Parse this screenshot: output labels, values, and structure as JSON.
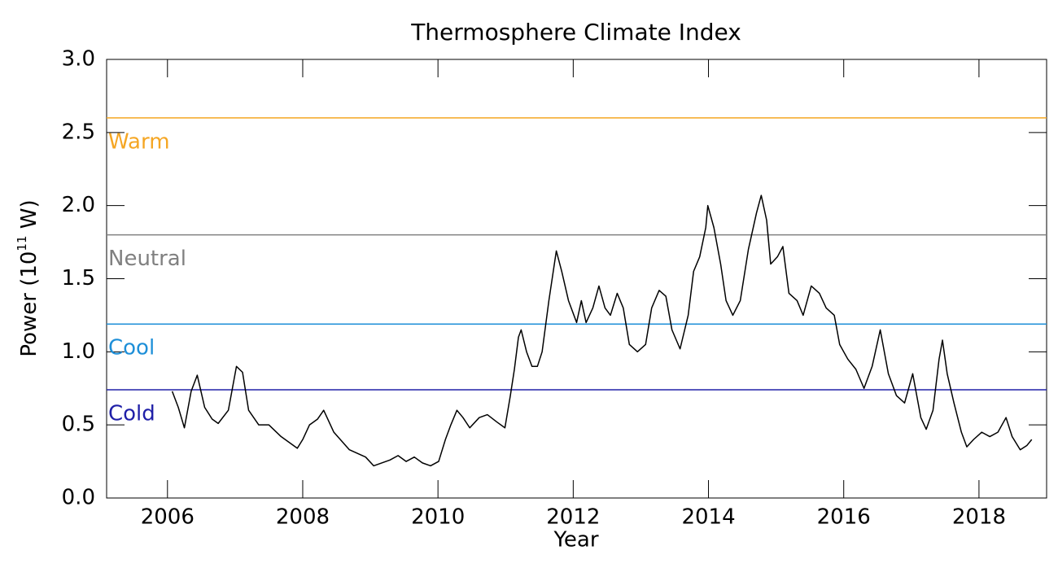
{
  "chart_data": {
    "type": "line",
    "title": "Thermosphere Climate Index",
    "xlabel": "Year",
    "ylabel": "Power (10",
    "ylabel_sup": "11",
    "ylabel_end": " W)",
    "xlim": [
      2005.1,
      2019.0
    ],
    "xticks": [
      2006,
      2008,
      2010,
      2012,
      2014,
      2016,
      2018
    ],
    "ylim": [
      0,
      3
    ],
    "yticks": [
      {
        "value": 0,
        "label": "0.0"
      },
      0.5,
      {
        "value": 1,
        "label": "1.0"
      },
      1.5,
      {
        "value": 2,
        "label": "2.0"
      },
      2.5,
      {
        "value": 3,
        "label": "3.0"
      }
    ],
    "color": "#000000",
    "thresholds": [
      {
        "name": "Warm",
        "value": 2.6,
        "color": "#f5a623"
      },
      {
        "name": "Neutral",
        "value": 1.8,
        "color": "#808080"
      },
      {
        "name": "Cool",
        "value": 1.19,
        "color": "#1e8fd8"
      },
      {
        "name": "Cold",
        "value": 0.74,
        "color": "#2020a8"
      }
    ],
    "x": [
      2006.07,
      2006.16,
      2006.25,
      2006.35,
      2006.44,
      2006.55,
      2006.66,
      2006.75,
      2006.9,
      2007.02,
      2007.11,
      2007.2,
      2007.35,
      2007.5,
      2007.68,
      2007.83,
      2007.92,
      2008.0,
      2008.1,
      2008.22,
      2008.31,
      2008.46,
      2008.69,
      2008.93,
      2009.05,
      2009.29,
      2009.41,
      2009.53,
      2009.65,
      2009.77,
      2009.89,
      2010.01,
      2010.11,
      2010.19,
      2010.28,
      2010.37,
      2010.47,
      2010.61,
      2010.73,
      2010.87,
      2010.99,
      2011.07,
      2011.13,
      2011.19,
      2011.23,
      2011.31,
      2011.39,
      2011.47,
      2011.54,
      2011.64,
      2011.75,
      2011.83,
      2011.93,
      2012.05,
      2012.12,
      2012.19,
      2012.29,
      2012.38,
      2012.47,
      2012.55,
      2012.65,
      2012.74,
      2012.83,
      2012.95,
      2013.07,
      2013.16,
      2013.27,
      2013.37,
      2013.46,
      2013.58,
      2013.7,
      2013.78,
      2013.87,
      2013.96,
      2013.99,
      2014.08,
      2014.18,
      2014.26,
      2014.36,
      2014.47,
      2014.59,
      2014.71,
      2014.78,
      2014.86,
      2014.92,
      2015.02,
      2015.1,
      2015.19,
      2015.31,
      2015.4,
      2015.52,
      2015.64,
      2015.74,
      2015.86,
      2015.94,
      2016.06,
      2016.18,
      2016.3,
      2016.42,
      2016.54,
      2016.66,
      2016.78,
      2016.9,
      2017.02,
      2017.14,
      2017.22,
      2017.32,
      2017.41,
      2017.46,
      2017.53,
      2017.63,
      2017.74,
      2017.82,
      2017.92,
      2018.04,
      2018.16,
      2018.28,
      2018.4,
      2018.49,
      2018.61,
      2018.71,
      2018.78
    ],
    "values": [
      0.73,
      0.62,
      0.48,
      0.73,
      0.84,
      0.62,
      0.54,
      0.51,
      0.6,
      0.9,
      0.86,
      0.6,
      0.5,
      0.5,
      0.42,
      0.37,
      0.34,
      0.4,
      0.5,
      0.54,
      0.6,
      0.45,
      0.33,
      0.28,
      0.22,
      0.26,
      0.29,
      0.25,
      0.28,
      0.24,
      0.22,
      0.25,
      0.4,
      0.5,
      0.6,
      0.55,
      0.48,
      0.55,
      0.57,
      0.52,
      0.48,
      0.7,
      0.88,
      1.1,
      1.15,
      1.0,
      0.9,
      0.9,
      1.0,
      1.35,
      1.69,
      1.55,
      1.35,
      1.2,
      1.35,
      1.2,
      1.3,
      1.45,
      1.3,
      1.25,
      1.4,
      1.3,
      1.05,
      1.0,
      1.05,
      1.3,
      1.42,
      1.38,
      1.15,
      1.02,
      1.25,
      1.55,
      1.65,
      1.85,
      2.0,
      1.85,
      1.6,
      1.35,
      1.25,
      1.35,
      1.7,
      1.95,
      2.07,
      1.9,
      1.6,
      1.65,
      1.72,
      1.4,
      1.35,
      1.25,
      1.45,
      1.4,
      1.3,
      1.25,
      1.05,
      0.95,
      0.88,
      0.75,
      0.9,
      1.15,
      0.85,
      0.7,
      0.65,
      0.85,
      0.55,
      0.47,
      0.6,
      0.95,
      1.08,
      0.85,
      0.65,
      0.45,
      0.35,
      0.4,
      0.45,
      0.42,
      0.45,
      0.55,
      0.42,
      0.33,
      0.36,
      0.4
    ]
  }
}
